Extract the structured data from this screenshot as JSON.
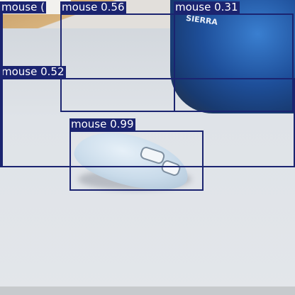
{
  "detections": [
    {
      "label": "mouse",
      "score": "0.56",
      "text": "mouse 0.56"
    },
    {
      "label": "mouse",
      "score": "0.31",
      "text": "mouse 0.31"
    },
    {
      "label": "mouse",
      "score": "0.52",
      "text": "mouse 0.52"
    },
    {
      "label": "mouse",
      "score": "0.99",
      "text": "mouse 0.99"
    },
    {
      "label": "mouse",
      "score": "",
      "text": "mouse ("
    }
  ],
  "photo": {
    "bag_brand": "SIERRA"
  },
  "colors": {
    "box_color": "#1b2470",
    "label_text": "#ffffff"
  }
}
